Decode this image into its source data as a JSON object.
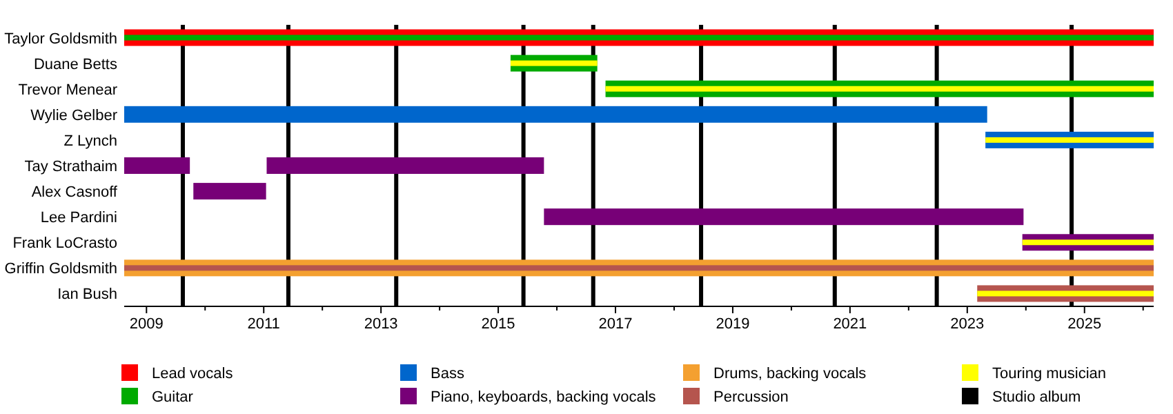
{
  "chart_data": {
    "type": "bar",
    "orientation": "horizontal",
    "categories": [
      "Taylor Goldsmith",
      "Duane Betts",
      "Trevor Menear",
      "Wylie Gelber",
      "Z Lynch",
      "Tay Strathaim",
      "Alex Casnoff",
      "Lee Pardini",
      "Frank LoCrasto",
      "Griffin Goldsmith",
      "Ian Bush"
    ],
    "series": [
      {
        "name": "Lead vocals",
        "color": "#ff0000",
        "base": [
          2008.62,
          null,
          null,
          null,
          null,
          null,
          null,
          null,
          null,
          null,
          null
        ],
        "values": [
          17.56,
          null,
          null,
          null,
          null,
          null,
          null,
          null,
          null,
          null,
          null
        ]
      },
      {
        "name": "Guitar",
        "color": "#00aa00",
        "base": [
          2008.62,
          2015.21,
          2016.83,
          null,
          null,
          null,
          null,
          null,
          null,
          null,
          null
        ],
        "values": [
          17.56,
          1.48,
          9.35,
          null,
          null,
          null,
          null,
          null,
          null,
          null,
          null
        ]
      },
      {
        "name": "Bass",
        "color": "#0066cc",
        "base": [
          null,
          null,
          null,
          2008.62,
          2023.31,
          null,
          null,
          null,
          null,
          null,
          null
        ],
        "values": [
          null,
          null,
          null,
          14.72,
          2.87,
          null,
          null,
          null,
          null,
          null,
          null
        ]
      },
      {
        "name": "Piano, keyboards, backing vocals",
        "color": "#770077",
        "base": [
          null,
          null,
          null,
          null,
          null,
          2008.62,
          2009.8,
          2015.78,
          2023.94,
          null,
          null
        ],
        "values": [
          null,
          null,
          null,
          null,
          null,
          1.12,
          1.24,
          8.18,
          2.24,
          null,
          null
        ]
      },
      {
        "color": "#770077",
        "base": [
          null,
          null,
          null,
          null,
          null,
          2011.05,
          null,
          null,
          null,
          null,
          null
        ],
        "values": [
          null,
          null,
          null,
          null,
          null,
          4.73,
          null,
          null,
          null,
          null,
          null
        ]
      },
      {
        "name": "Drums, backing vocals",
        "color": "#f4a030",
        "base": [
          null,
          null,
          null,
          null,
          null,
          null,
          null,
          null,
          null,
          2008.62,
          null
        ],
        "values": [
          null,
          null,
          null,
          null,
          null,
          null,
          null,
          null,
          null,
          17.56,
          null
        ]
      },
      {
        "name": "Percussion",
        "color": "#b5554e",
        "base": [
          null,
          null,
          null,
          null,
          null,
          null,
          null,
          null,
          null,
          2008.62,
          2023.17
        ],
        "values": [
          null,
          null,
          null,
          null,
          null,
          null,
          null,
          null,
          null,
          17.56,
          3.01
        ]
      },
      {
        "name": "Touring musician",
        "color": "#ffff00",
        "base": [
          null,
          2015.21,
          2016.83,
          null,
          2023.31,
          null,
          null,
          null,
          2023.94,
          null,
          2023.17
        ],
        "values": [
          null,
          1.48,
          9.35,
          null,
          2.87,
          null,
          null,
          null,
          2.24,
          null,
          3.01
        ]
      }
    ],
    "xlim": [
      2008.62,
      2026.18
    ],
    "xticks": [
      2009,
      {
        "value": 2010,
        "label": null
      },
      2011,
      {
        "value": 2012,
        "label": null
      },
      2013,
      {
        "value": 2014,
        "label": null
      },
      2015,
      {
        "value": 2016,
        "label": null
      },
      2017,
      {
        "value": 2018,
        "label": null
      },
      2019,
      {
        "value": 2020,
        "label": null
      },
      2021,
      {
        "value": 2022,
        "label": null
      },
      2023,
      {
        "value": 2024,
        "label": null
      },
      2025,
      {
        "value": 2026,
        "label": null
      }
    ],
    "ref_lines": [
      {
        "axis": "x",
        "value": 2009.62,
        "label": "Studio album",
        "color": "#000000"
      },
      {
        "axis": "x",
        "value": 2011.42,
        "color": "#000000"
      },
      {
        "axis": "x",
        "value": 2013.26,
        "color": "#000000"
      },
      {
        "axis": "x",
        "value": 2015.43,
        "color": "#000000"
      },
      {
        "axis": "x",
        "value": 2016.62,
        "color": "#000000"
      },
      {
        "axis": "x",
        "value": 2018.46,
        "color": "#000000"
      },
      {
        "axis": "x",
        "value": 2020.74,
        "color": "#000000"
      },
      {
        "axis": "x",
        "value": 2022.48,
        "color": "#000000"
      },
      {
        "axis": "x",
        "value": 2024.78,
        "color": "#000000"
      }
    ],
    "legend": "bottom"
  }
}
